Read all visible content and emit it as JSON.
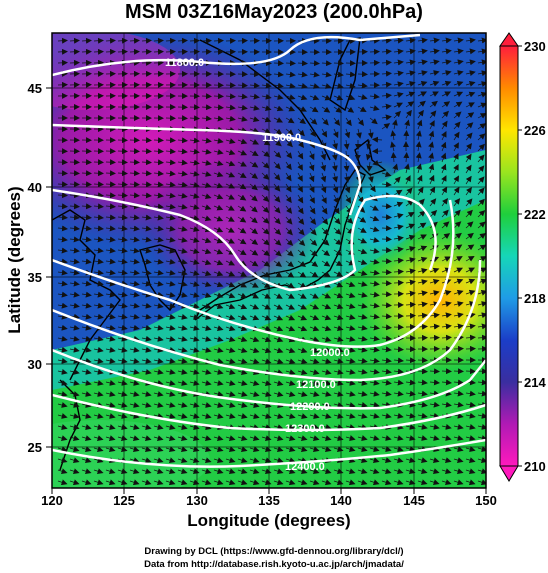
{
  "title": "MSM 03Z16May2023 (200.0hPa)",
  "xlabel": "Longitude (degrees)",
  "ylabel": "Latitude  (degrees)",
  "credits": [
    "Drawing by DCL (https://www.gfd-dennou.org/library/dcl/)",
    "Data from http://database.rish.kyoto-u.ac.jp/arch/jmadata/"
  ],
  "map": {
    "lon_range": [
      120,
      150
    ],
    "lat_range": [
      22.4,
      47.6
    ],
    "lon_ticks": [
      "120",
      "125",
      "130",
      "135",
      "140",
      "145",
      "150"
    ],
    "lat_ticks": [
      "25",
      "30",
      "35",
      "40",
      "45"
    ],
    "grid_lines": true
  },
  "colorbar": {
    "range": [
      210,
      230
    ],
    "tick_labels": [
      "230",
      "226",
      "222",
      "218",
      "214",
      "210"
    ],
    "colors": [
      "#ff1e3c",
      "#ff8a00",
      "#ffe600",
      "#9ae51f",
      "#1fcf3c",
      "#16d6b8",
      "#1f9ce6",
      "#1b3ec8",
      "#3a2ea0",
      "#b01ab4",
      "#ff19bd"
    ]
  },
  "contours": [
    {
      "label": "11800.0"
    },
    {
      "label": "11900.0"
    },
    {
      "label": "12000.0"
    },
    {
      "label": "12100.0"
    },
    {
      "label": "12200.0"
    },
    {
      "label": "12300.0"
    },
    {
      "label": "12400.0"
    }
  ]
}
